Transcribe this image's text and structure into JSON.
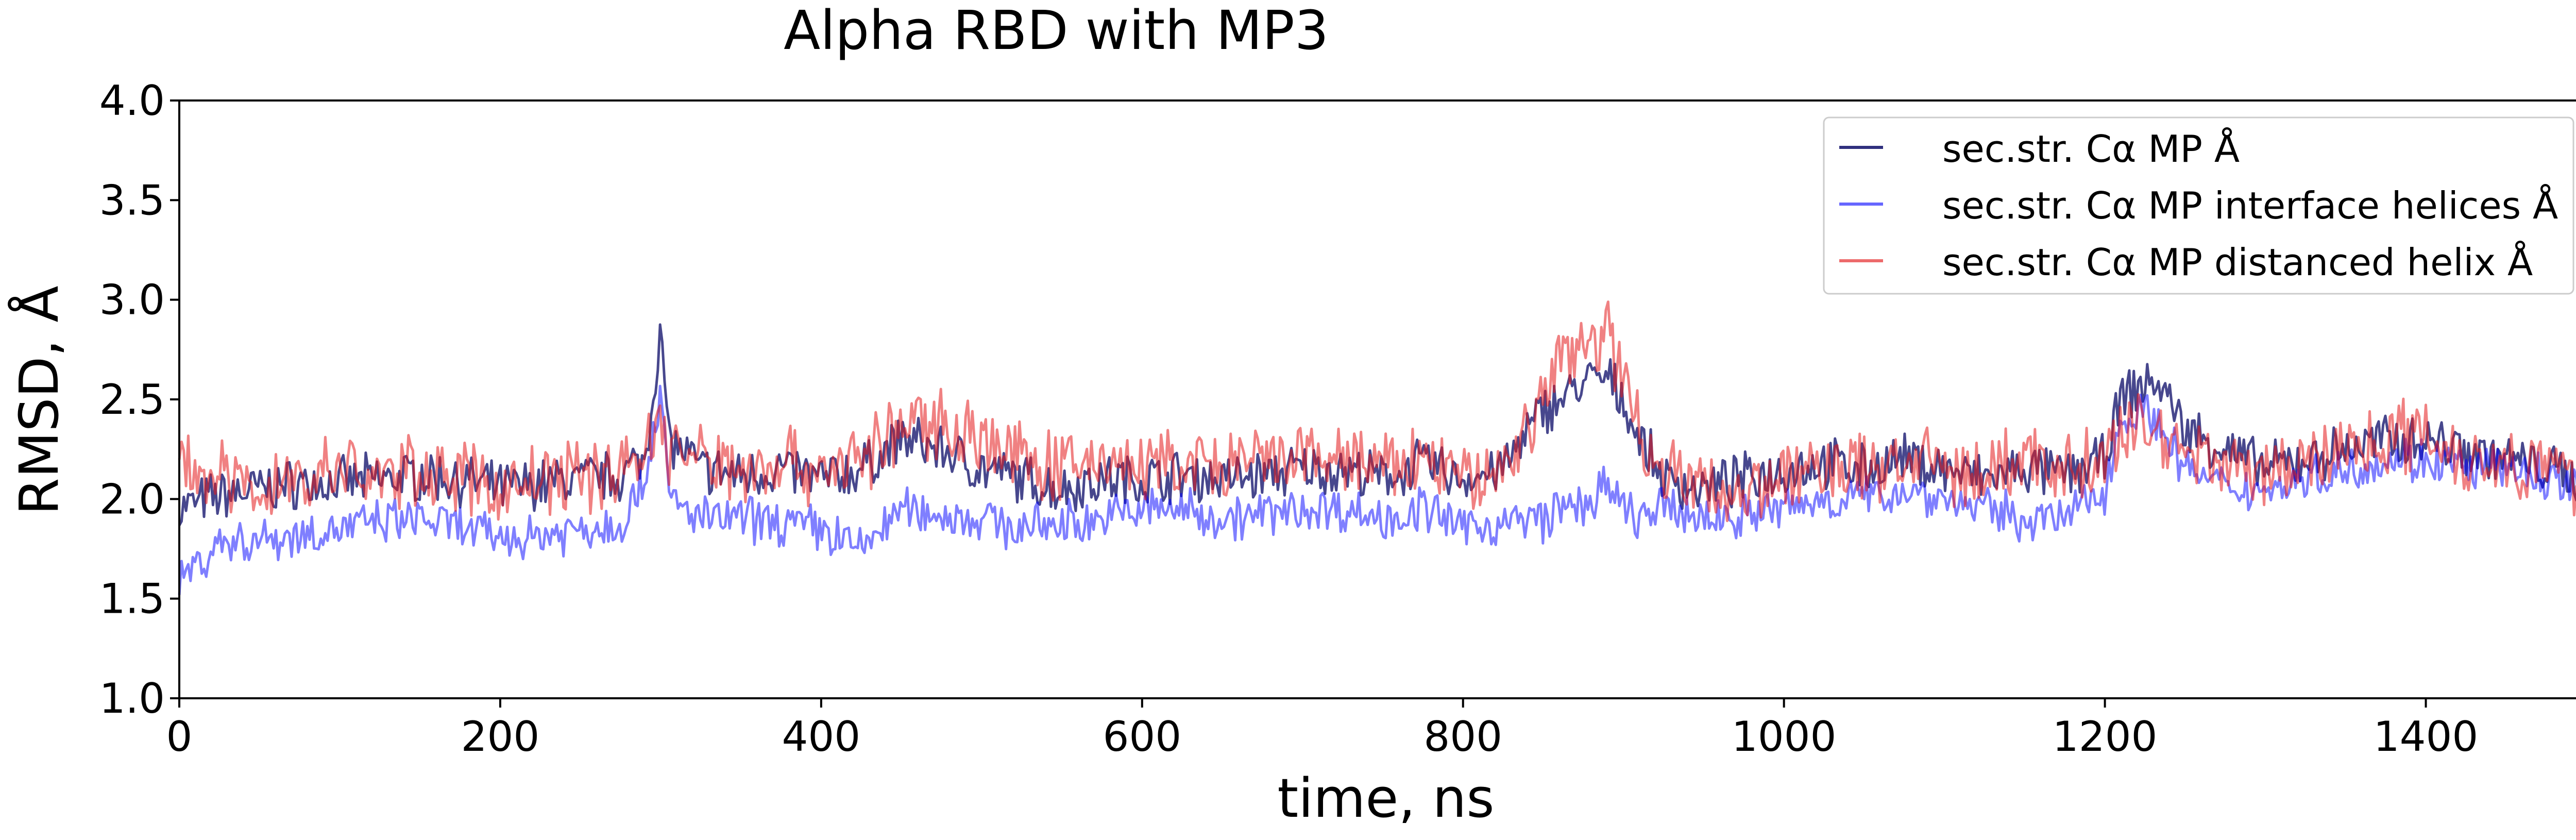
{
  "chart_data": {
    "type": "line",
    "title": "Alpha RBD with MP3",
    "xlabel": "time, ns",
    "ylabel": "RMSD, Å",
    "xlim": [
      0,
      1500
    ],
    "ylim": [
      1.0,
      4.0
    ],
    "xticks": [
      0,
      200,
      400,
      600,
      800,
      1000,
      1200,
      1400
    ],
    "yticks": [
      1.0,
      1.5,
      2.0,
      2.5,
      3.0,
      3.5,
      4.0
    ],
    "grid": false,
    "legend_position": "top-right",
    "series": [
      {
        "name": "sec.str. Cα MP Å",
        "color": "#191970",
        "opacity": 0.8,
        "x": [
          0,
          25,
          50,
          75,
          100,
          125,
          150,
          175,
          200,
          225,
          250,
          275,
          290,
          300,
          305,
          325,
          350,
          375,
          400,
          425,
          450,
          475,
          500,
          525,
          550,
          575,
          600,
          625,
          650,
          675,
          700,
          725,
          750,
          775,
          800,
          825,
          850,
          860,
          870,
          880,
          890,
          900,
          910,
          925,
          950,
          975,
          1000,
          1025,
          1050,
          1075,
          1100,
          1125,
          1150,
          1175,
          1200,
          1210,
          1220,
          1230,
          1240,
          1250,
          1275,
          1300,
          1325,
          1350,
          1375,
          1400,
          1425,
          1450,
          1475,
          1500
        ],
        "y": [
          1.95,
          2.02,
          2.05,
          2.08,
          2.08,
          2.1,
          2.12,
          2.1,
          2.05,
          2.08,
          2.1,
          2.12,
          2.2,
          2.85,
          2.3,
          2.15,
          2.12,
          2.15,
          2.1,
          2.15,
          2.3,
          2.25,
          2.15,
          2.1,
          2.05,
          2.1,
          2.1,
          2.12,
          2.1,
          2.12,
          2.15,
          2.15,
          2.1,
          2.18,
          2.1,
          2.15,
          2.45,
          2.5,
          2.55,
          2.6,
          2.6,
          2.5,
          2.3,
          2.1,
          2.05,
          2.1,
          2.15,
          2.18,
          2.15,
          2.2,
          2.15,
          2.1,
          2.15,
          2.12,
          2.2,
          2.5,
          2.55,
          2.6,
          2.5,
          2.35,
          2.25,
          2.15,
          2.2,
          2.25,
          2.3,
          2.3,
          2.25,
          2.2,
          2.15,
          2.1
        ]
      },
      {
        "name": "sec.str. Cα MP interface helices Å",
        "color": "#0000ff",
        "opacity": 0.5,
        "x": [
          0,
          25,
          50,
          75,
          100,
          125,
          150,
          175,
          200,
          225,
          250,
          275,
          290,
          300,
          305,
          325,
          350,
          375,
          400,
          425,
          450,
          475,
          500,
          525,
          550,
          575,
          600,
          625,
          650,
          675,
          700,
          725,
          750,
          775,
          800,
          825,
          850,
          860,
          870,
          880,
          890,
          900,
          910,
          925,
          950,
          975,
          1000,
          1025,
          1050,
          1075,
          1100,
          1125,
          1150,
          1175,
          1200,
          1210,
          1220,
          1230,
          1240,
          1250,
          1275,
          1300,
          1325,
          1350,
          1375,
          1400,
          1425,
          1450,
          1475,
          1500
        ],
        "y": [
          1.6,
          1.78,
          1.8,
          1.82,
          1.85,
          1.88,
          1.9,
          1.85,
          1.8,
          1.82,
          1.85,
          1.88,
          2.1,
          2.55,
          2.0,
          1.9,
          1.9,
          1.88,
          1.85,
          1.75,
          1.95,
          1.92,
          1.9,
          1.85,
          1.88,
          1.9,
          1.95,
          1.95,
          1.9,
          1.92,
          1.95,
          1.95,
          1.9,
          1.95,
          1.85,
          1.88,
          1.9,
          1.95,
          1.95,
          2.0,
          2.05,
          1.95,
          1.9,
          1.95,
          1.9,
          1.92,
          1.95,
          2.0,
          2.0,
          2.05,
          2.0,
          1.95,
          1.9,
          1.9,
          2.05,
          2.4,
          2.45,
          2.4,
          2.3,
          2.15,
          2.05,
          2.05,
          2.1,
          2.15,
          2.2,
          2.2,
          2.15,
          2.15,
          2.1,
          2.05
        ]
      },
      {
        "name": "sec.str. Cα MP distanced helix Å",
        "color": "#e41a1c",
        "opacity": 0.55,
        "x": [
          0,
          25,
          50,
          75,
          100,
          125,
          150,
          175,
          200,
          225,
          250,
          275,
          290,
          300,
          305,
          325,
          350,
          375,
          400,
          425,
          450,
          475,
          500,
          525,
          550,
          575,
          600,
          625,
          650,
          675,
          700,
          725,
          750,
          775,
          800,
          825,
          850,
          860,
          870,
          880,
          890,
          900,
          910,
          925,
          950,
          975,
          1000,
          1025,
          1050,
          1075,
          1100,
          1125,
          1150,
          1175,
          1200,
          1210,
          1220,
          1230,
          1240,
          1250,
          1275,
          1300,
          1325,
          1350,
          1375,
          1400,
          1425,
          1450,
          1475,
          1500
        ],
        "y": [
          2.2,
          2.1,
          2.05,
          2.1,
          2.15,
          2.1,
          2.15,
          2.1,
          2.05,
          2.1,
          2.12,
          2.15,
          2.25,
          2.4,
          2.25,
          2.2,
          2.15,
          2.2,
          2.15,
          2.2,
          2.35,
          2.4,
          2.3,
          2.2,
          2.15,
          2.2,
          2.15,
          2.18,
          2.15,
          2.18,
          2.2,
          2.2,
          2.15,
          2.2,
          2.1,
          2.15,
          2.5,
          2.7,
          2.75,
          2.8,
          2.85,
          2.6,
          2.35,
          2.15,
          2.05,
          2.05,
          2.1,
          2.15,
          2.15,
          2.2,
          2.15,
          2.12,
          2.2,
          2.15,
          2.2,
          2.3,
          2.4,
          2.35,
          2.3,
          2.25,
          2.2,
          2.1,
          2.2,
          2.25,
          2.3,
          2.35,
          2.2,
          2.2,
          2.15,
          2.05
        ]
      }
    ]
  }
}
